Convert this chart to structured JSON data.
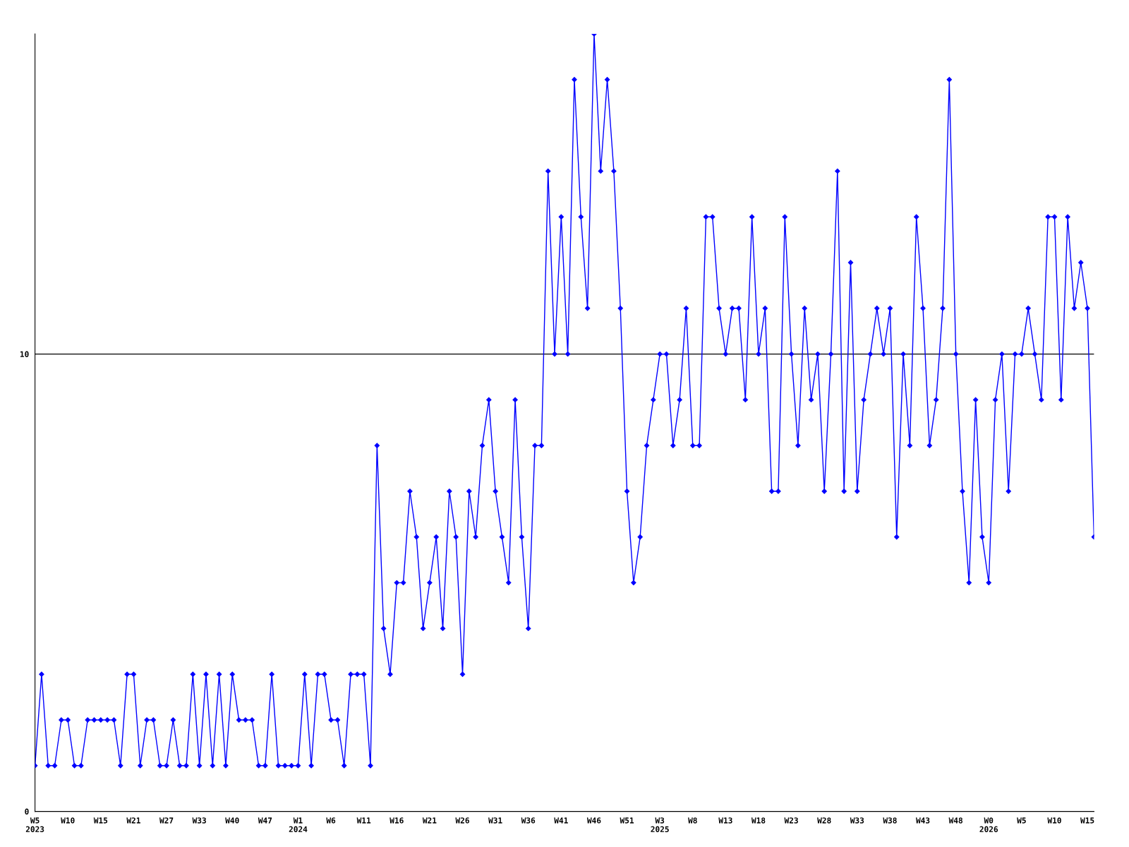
{
  "chart_data": {
    "type": "line",
    "categories": [
      "W5\n2023",
      null,
      null,
      null,
      null,
      "W10",
      null,
      null,
      null,
      null,
      "W15",
      null,
      null,
      null,
      null,
      "W21",
      null,
      null,
      null,
      null,
      "W27",
      null,
      null,
      null,
      null,
      "W33",
      null,
      null,
      null,
      null,
      "W40",
      null,
      null,
      null,
      null,
      "W47",
      null,
      null,
      null,
      null,
      "W1\n2024",
      null,
      null,
      null,
      null,
      "W6",
      null,
      null,
      null,
      null,
      "W11",
      null,
      null,
      null,
      null,
      "W16",
      null,
      null,
      null,
      null,
      "W21",
      null,
      null,
      null,
      null,
      "W26",
      null,
      null,
      null,
      null,
      "W31",
      null,
      null,
      null,
      null,
      "W36",
      null,
      null,
      null,
      null,
      "W41",
      null,
      null,
      null,
      null,
      "W46",
      null,
      null,
      null,
      null,
      "W51",
      null,
      null,
      null,
      null,
      "W3\n2025",
      null,
      null,
      null,
      null,
      "W8",
      null,
      null,
      null,
      null,
      "W13",
      null,
      null,
      null,
      null,
      "W18",
      null,
      null,
      null,
      null,
      "W23",
      null,
      null,
      null,
      null,
      "W28",
      null,
      null,
      null,
      null,
      "W33",
      null,
      null,
      null,
      null,
      "W38",
      null,
      null,
      null,
      null,
      "W43",
      null,
      null,
      null,
      null,
      "W48",
      null,
      null,
      null,
      null,
      "W0\n2026",
      null,
      null,
      null,
      null,
      "W5",
      null,
      null,
      null,
      null,
      "W10",
      null,
      null,
      null,
      null,
      "W15",
      null
    ],
    "series": [
      {
        "color": "#0000ff",
        "values": [
          1,
          3,
          1,
          1,
          2,
          2,
          1,
          1,
          2,
          2,
          2,
          2,
          2,
          1,
          3,
          3,
          1,
          2,
          2,
          1,
          1,
          2,
          1,
          1,
          3,
          1,
          3,
          1,
          3,
          1,
          3,
          2,
          2,
          2,
          1,
          1,
          3,
          1,
          1,
          1,
          1,
          3,
          1,
          3,
          3,
          2,
          2,
          1,
          3,
          3,
          3,
          1,
          8,
          4,
          3,
          5,
          5,
          7,
          6,
          4,
          5,
          6,
          4,
          7,
          6,
          3,
          7,
          6,
          8,
          9,
          7,
          6,
          5,
          9,
          6,
          4,
          8,
          8,
          14,
          10,
          13,
          10,
          16,
          13,
          11,
          17,
          14,
          16,
          14,
          11,
          7,
          5,
          6,
          8,
          9,
          10,
          10,
          8,
          9,
          11,
          8,
          8,
          13,
          13,
          11,
          10,
          11,
          11,
          9,
          13,
          10,
          11,
          7,
          7,
          13,
          10,
          8,
          11,
          9,
          10,
          7,
          10,
          14,
          7,
          12,
          7,
          9,
          10,
          11,
          10,
          11,
          6,
          10,
          8,
          13,
          11,
          8,
          9,
          11,
          16,
          10,
          7,
          5,
          9,
          6,
          5,
          9,
          10,
          7,
          10,
          10,
          11,
          10,
          9,
          13,
          13,
          9,
          13,
          11,
          12,
          11,
          6
        ]
      }
    ],
    "ylim": [
      0,
      17
    ],
    "yticks": [
      0,
      10
    ],
    "grid": "y",
    "marker": "diamond",
    "line_style": "solid"
  }
}
